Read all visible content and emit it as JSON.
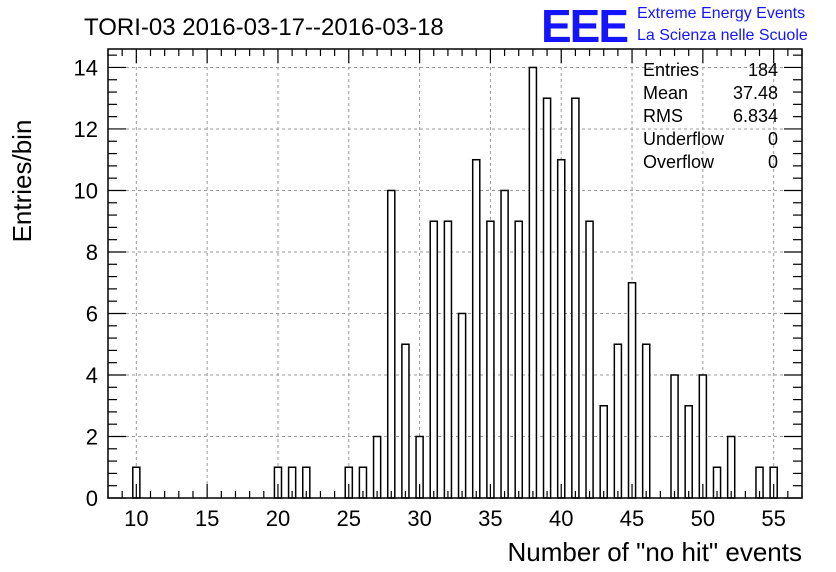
{
  "chart_data": {
    "type": "bar",
    "title": "TORI-03 2016-03-17--2016-03-18",
    "xlabel": "Number of \"no hit\" events",
    "ylabel": "Entries/bin",
    "xlim": [
      8,
      57
    ],
    "ylim": [
      0,
      14.6
    ],
    "grid": true,
    "x_ticks": [
      10,
      15,
      20,
      25,
      30,
      35,
      40,
      45,
      50,
      55
    ],
    "y_ticks": [
      0,
      2,
      4,
      6,
      8,
      10,
      12,
      14
    ],
    "bins": [
      {
        "x": 10,
        "count": 1
      },
      {
        "x": 20,
        "count": 1
      },
      {
        "x": 21,
        "count": 1
      },
      {
        "x": 22,
        "count": 1
      },
      {
        "x": 25,
        "count": 1
      },
      {
        "x": 26,
        "count": 1
      },
      {
        "x": 27,
        "count": 2
      },
      {
        "x": 28,
        "count": 10
      },
      {
        "x": 29,
        "count": 5
      },
      {
        "x": 30,
        "count": 2
      },
      {
        "x": 31,
        "count": 9
      },
      {
        "x": 32,
        "count": 9
      },
      {
        "x": 33,
        "count": 6
      },
      {
        "x": 34,
        "count": 11
      },
      {
        "x": 35,
        "count": 9
      },
      {
        "x": 36,
        "count": 10
      },
      {
        "x": 37,
        "count": 9
      },
      {
        "x": 38,
        "count": 14
      },
      {
        "x": 39,
        "count": 13
      },
      {
        "x": 40,
        "count": 11
      },
      {
        "x": 41,
        "count": 13
      },
      {
        "x": 42,
        "count": 9
      },
      {
        "x": 43,
        "count": 3
      },
      {
        "x": 44,
        "count": 5
      },
      {
        "x": 45,
        "count": 7
      },
      {
        "x": 46,
        "count": 5
      },
      {
        "x": 48,
        "count": 4
      },
      {
        "x": 49,
        "count": 3
      },
      {
        "x": 50,
        "count": 4
      },
      {
        "x": 51,
        "count": 1
      },
      {
        "x": 52,
        "count": 2
      },
      {
        "x": 54,
        "count": 1
      },
      {
        "x": 55,
        "count": 1
      }
    ],
    "stats": [
      {
        "label": "Entries",
        "value": "184"
      },
      {
        "label": "Mean",
        "value": "37.48"
      },
      {
        "label": "RMS",
        "value": "6.834"
      },
      {
        "label": "Underflow",
        "value": "0"
      },
      {
        "label": "Overflow",
        "value": "0"
      }
    ]
  },
  "logo": {
    "mark": "EEE",
    "line1": "Extreme Energy Events",
    "line2": "La Scienza nelle Scuole",
    "color": "#1414ff"
  }
}
